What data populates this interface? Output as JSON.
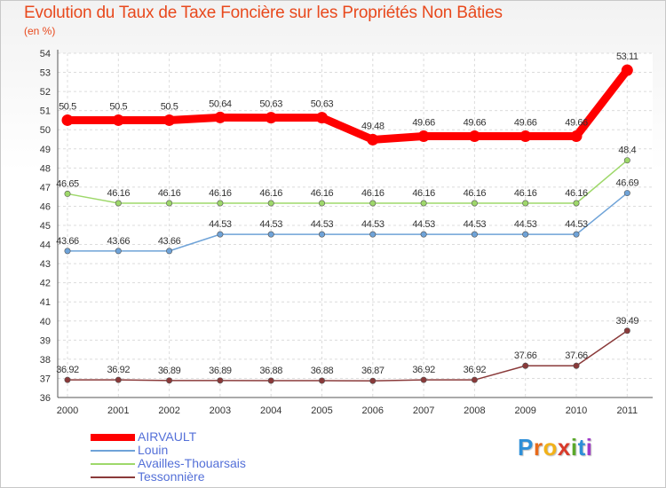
{
  "header": {
    "title": "Evolution du Taux de Taxe Foncière sur les Propriétés Non Bâties",
    "unit": "(en %)"
  },
  "logo": {
    "letters": [
      "P",
      "r",
      "o",
      "x",
      "i",
      "t",
      "i"
    ],
    "colors": [
      "#2e8fd8",
      "#e86a1a",
      "#f2b21a",
      "#d93a2a",
      "#5aa82a",
      "#2e8fd8",
      "#a03ac8"
    ]
  },
  "chart_data": {
    "type": "line",
    "title": "Evolution du Taux de Taxe Foncière sur les Propriétés Non Bâties",
    "ylabel": "(en %)",
    "xlabel": "",
    "x": [
      "2000",
      "2001",
      "2002",
      "2003",
      "2004",
      "2005",
      "2006",
      "2007",
      "2008",
      "2009",
      "2010",
      "2011"
    ],
    "ylim": [
      36,
      54
    ],
    "yticks": [
      "36",
      "37",
      "38",
      "39",
      "40",
      "41",
      "42",
      "43",
      "44",
      "45",
      "46",
      "47",
      "48",
      "49",
      "50",
      "51",
      "52",
      "53",
      "54"
    ],
    "series": [
      {
        "name": "AIRVAULT",
        "color": "#ff0000",
        "values": [
          50.5,
          50.5,
          50.5,
          50.64,
          50.63,
          50.63,
          49.48,
          49.66,
          49.66,
          49.66,
          49.66,
          53.11
        ],
        "labels": [
          "50.5",
          "50.5",
          "50.5",
          "50.64",
          "50.63",
          "50.63",
          "49.48",
          "49.66",
          "49.66",
          "49.66",
          "49.66",
          "53.11"
        ]
      },
      {
        "name": "Louin",
        "color": "#6fa3d8",
        "values": [
          43.66,
          43.66,
          43.66,
          44.53,
          44.53,
          44.53,
          44.53,
          44.53,
          44.53,
          44.53,
          44.53,
          46.69
        ],
        "labels": [
          "43.66",
          "43.66",
          "43.66",
          "44.53",
          "44.53",
          "44.53",
          "44.53",
          "44.53",
          "44.53",
          "44.53",
          "44.53",
          "46.69"
        ]
      },
      {
        "name": "Availles-Thouarsais",
        "color": "#9ed86a",
        "values": [
          46.65,
          46.16,
          46.16,
          46.16,
          46.16,
          46.16,
          46.16,
          46.16,
          46.16,
          46.16,
          46.16,
          48.4
        ],
        "labels": [
          "46.65",
          "46.16",
          "46.16",
          "46.16",
          "46.16",
          "46.16",
          "46.16",
          "46.16",
          "46.16",
          "46.16",
          "46.16",
          "48.4"
        ]
      },
      {
        "name": "Tessonnière",
        "color": "#8a3a3a",
        "values": [
          36.92,
          36.92,
          36.89,
          36.89,
          36.88,
          36.88,
          36.87,
          36.92,
          36.92,
          37.66,
          37.66,
          39.49
        ],
        "labels": [
          "36.92",
          "36.92",
          "36.89",
          "36.89",
          "36.88",
          "36.88",
          "36.87",
          "36.92",
          "36.92",
          "37.66",
          "37.66",
          "39.49"
        ]
      }
    ]
  }
}
